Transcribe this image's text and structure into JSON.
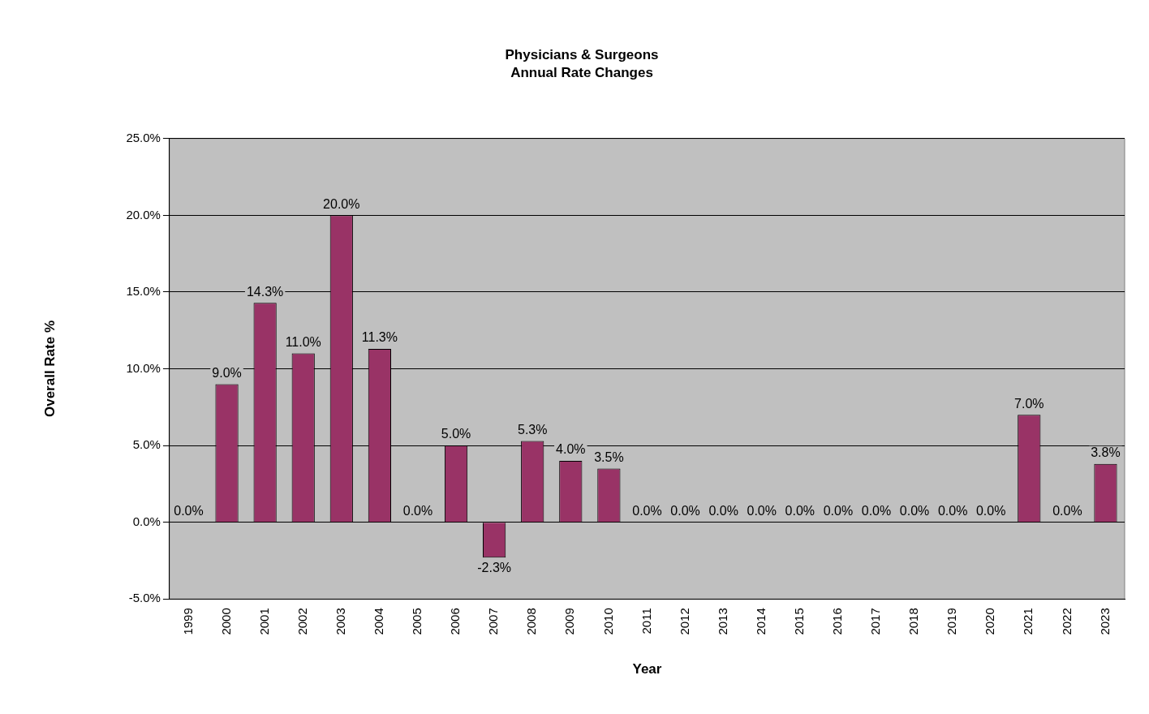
{
  "chart_data": {
    "type": "bar",
    "title": "Physicians & Surgeons",
    "subtitle": "Annual Rate Changes",
    "xlabel": "Year",
    "ylabel": "Overall Rate %",
    "categories": [
      "1999",
      "2000",
      "2001",
      "2002",
      "2003",
      "2004",
      "2005",
      "2006",
      "2007",
      "2008",
      "2009",
      "2010",
      "2011",
      "2012",
      "2013",
      "2014",
      "2015",
      "2016",
      "2017",
      "2018",
      "2019",
      "2020",
      "2021",
      "2022",
      "2023"
    ],
    "values": [
      0,
      9.0,
      14.3,
      11.0,
      20.0,
      11.3,
      0,
      5.0,
      -2.3,
      5.3,
      4.0,
      3.5,
      0,
      0,
      0,
      0,
      0,
      0,
      0,
      0,
      0,
      0,
      7.0,
      0,
      3.8
    ],
    "value_labels": [
      "0.0%",
      "9.0%",
      "14.3%",
      "11.0%",
      "20.0%",
      "11.3%",
      "0.0%",
      "5.0%",
      "-2.3%",
      "5.3%",
      "4.0%",
      "3.5%",
      "0.0%",
      "0.0%",
      "0.0%",
      "0.0%",
      "0.0%",
      "0.0%",
      "0.0%",
      "0.0%",
      "0.0%",
      "0.0%",
      "7.0%",
      "0.0%",
      "3.8%"
    ],
    "color": "#993366",
    "ylim": [
      -5,
      25
    ],
    "yticks": [
      {
        "value": -5,
        "label": "-5.0%"
      },
      {
        "value": 0,
        "label": "0.0%"
      },
      {
        "value": 5,
        "label": "5.0%"
      },
      {
        "value": 10,
        "label": "10.0%"
      },
      {
        "value": 15,
        "label": "15.0%"
      },
      {
        "value": 20,
        "label": "20.0%"
      },
      {
        "value": 25,
        "label": "25.0%"
      }
    ],
    "grid": "y"
  }
}
